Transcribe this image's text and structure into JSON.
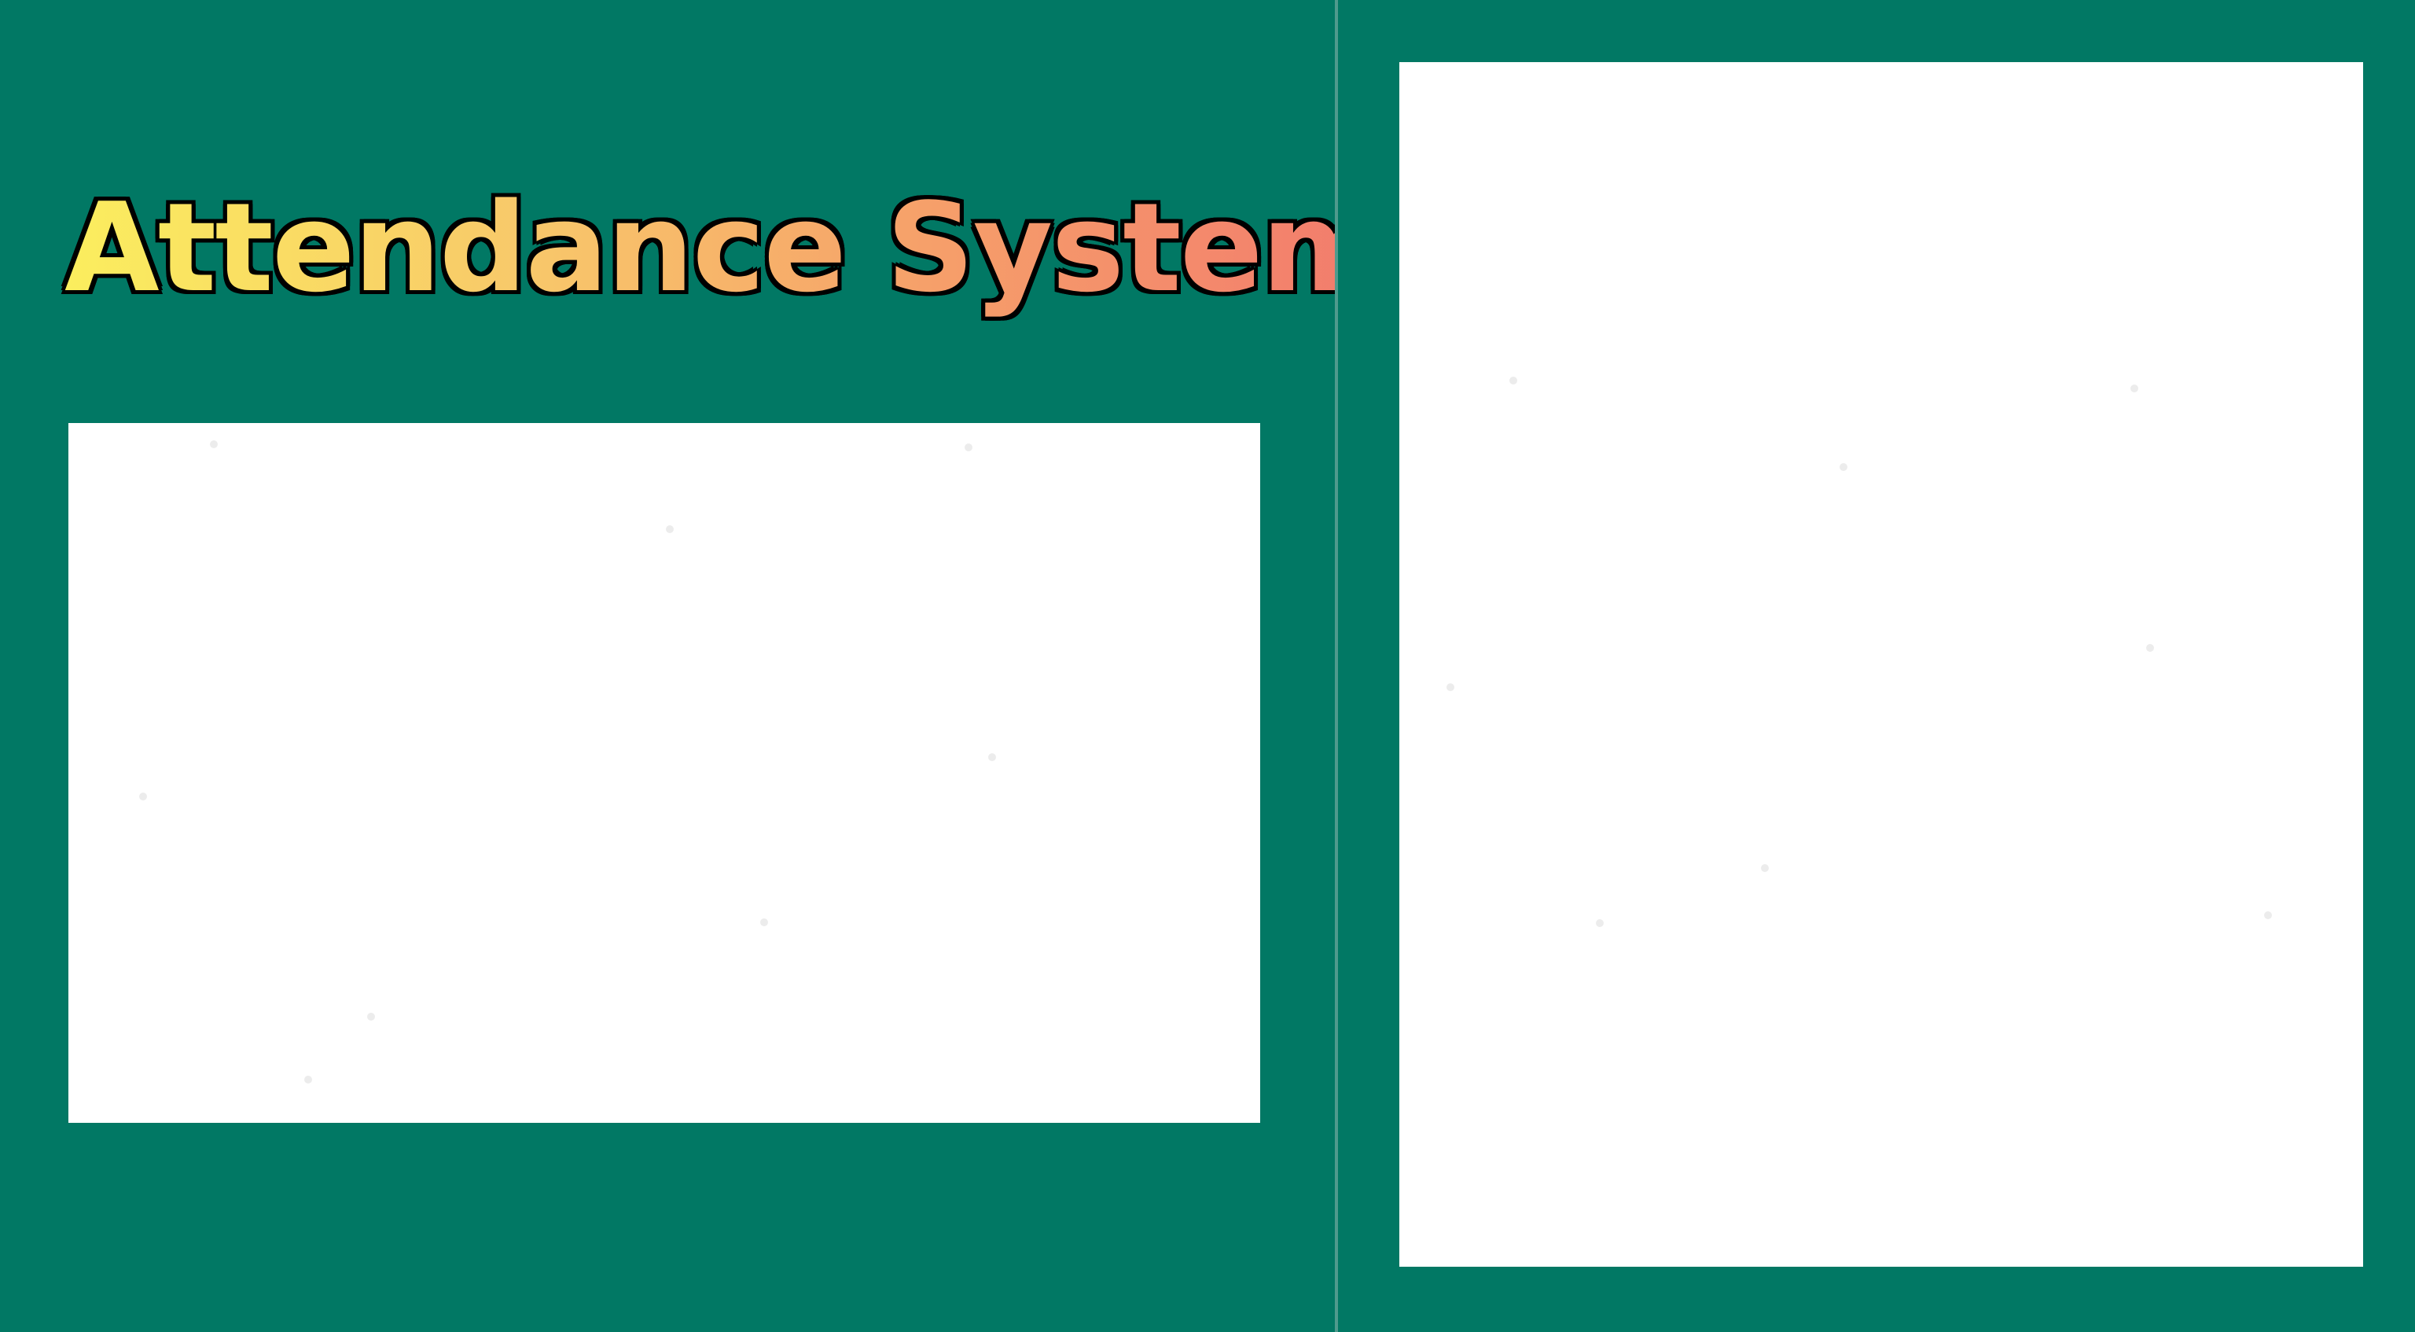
{
  "app": {
    "title": "Attendance System"
  },
  "colors": {
    "background": "#017864",
    "panel": "#ffffff",
    "divider": "#4f9a8d",
    "title_gradient_start": "#fbee5e",
    "title_gradient_end": "#f27a6d",
    "title_outline": "#000000"
  }
}
